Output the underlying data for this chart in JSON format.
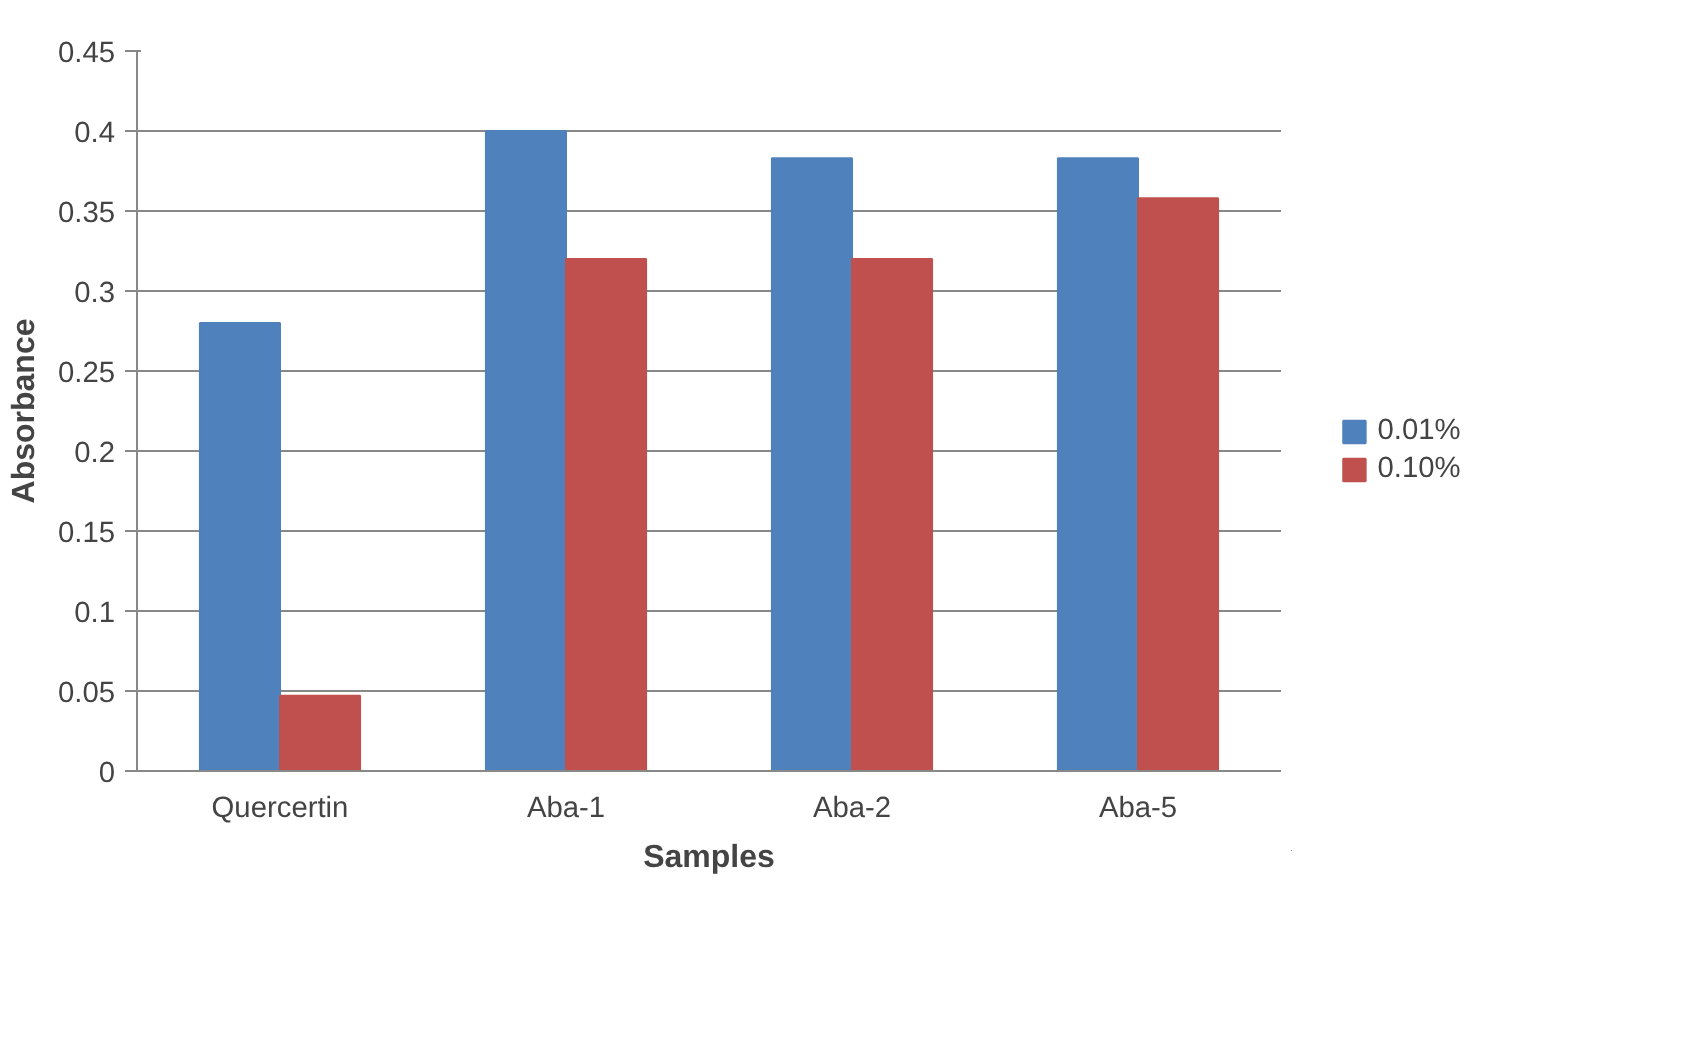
{
  "chart_data": {
    "type": "bar",
    "xlabel": "Samples",
    "ylabel": "Absorbance",
    "categories": [
      "Quercertin",
      "Aba-1",
      "Aba-2",
      "Aba-5"
    ],
    "series": [
      {
        "name": "0.01%",
        "color": "#4f81bd",
        "values": [
          0.28,
          0.4,
          0.383,
          0.383
        ]
      },
      {
        "name": "0.10%",
        "color": "#c0504d",
        "values": [
          0.047,
          0.32,
          0.32,
          0.358
        ]
      }
    ],
    "ylim": [
      0,
      0.45
    ],
    "yticks": [
      0,
      0.05,
      0.1,
      0.15,
      0.2,
      0.25,
      0.3,
      0.35,
      0.4,
      0.45
    ],
    "grid": "y",
    "legend": "right"
  }
}
